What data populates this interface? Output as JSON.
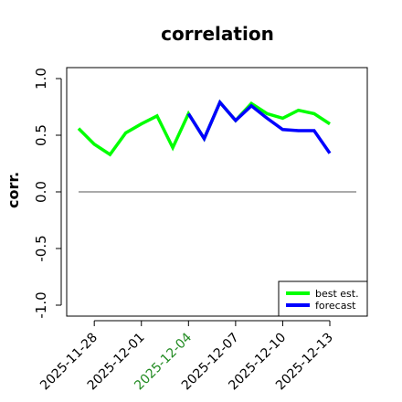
{
  "chart_data": {
    "type": "line",
    "title": "correlation",
    "xlabel": "",
    "ylabel": "corr.",
    "ylim": [
      -1.05,
      1.05
    ],
    "yticks": [
      "-1.0",
      "-0.5",
      "0.0",
      "0.5",
      "1.0"
    ],
    "ytick_values": [
      -1.0,
      -0.5,
      0.0,
      0.5,
      1.0
    ],
    "x": [
      "2025-11-27",
      "2025-11-28",
      "2025-11-29",
      "2025-11-30",
      "2025-12-01",
      "2025-12-02",
      "2025-12-03",
      "2025-12-04",
      "2025-12-05",
      "2025-12-06",
      "2025-12-07",
      "2025-12-08",
      "2025-12-09",
      "2025-12-10",
      "2025-12-11",
      "2025-12-12",
      "2025-12-13"
    ],
    "xticks": [
      "2025-11-28",
      "2025-12-01",
      "2025-12-04",
      "2025-12-07",
      "2025-12-10",
      "2025-12-13"
    ],
    "xtick_colors": [
      "#000000",
      "#000000",
      "#228B22",
      "#000000",
      "#000000",
      "#000000"
    ],
    "reference_line": 0.0,
    "series": [
      {
        "name": "best est.",
        "color": "#00ff00",
        "x": [
          "2025-11-27",
          "2025-11-28",
          "2025-11-29",
          "2025-11-30",
          "2025-12-01",
          "2025-12-02",
          "2025-12-03",
          "2025-12-04",
          "2025-12-05",
          "2025-12-06",
          "2025-12-07",
          "2025-12-08",
          "2025-12-09",
          "2025-12-10",
          "2025-12-11",
          "2025-12-12",
          "2025-12-13"
        ],
        "values": [
          0.56,
          0.42,
          0.33,
          0.52,
          0.6,
          0.67,
          0.39,
          0.69,
          0.47,
          0.79,
          0.63,
          0.78,
          0.69,
          0.65,
          0.72,
          0.69,
          0.6
        ]
      },
      {
        "name": "forecast",
        "color": "#0000ff",
        "x": [
          "2025-12-04",
          "2025-12-05",
          "2025-12-06",
          "2025-12-07",
          "2025-12-08",
          "2025-12-09",
          "2025-12-10",
          "2025-12-11",
          "2025-12-12",
          "2025-12-13"
        ],
        "values": [
          0.69,
          0.47,
          0.79,
          0.63,
          0.76,
          0.65,
          0.55,
          0.54,
          0.54,
          0.34
        ]
      }
    ],
    "legend": {
      "position": "bottom-right",
      "entries": [
        "best est.",
        "forecast"
      ]
    }
  }
}
